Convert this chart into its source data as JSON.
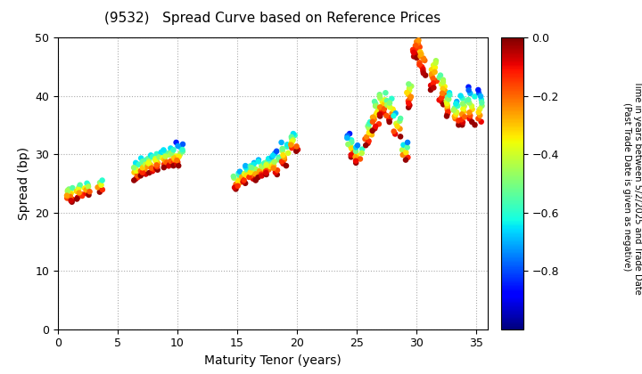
{
  "title": "(9532)   Spread Curve based on Reference Prices",
  "xlabel": "Maturity Tenor (years)",
  "ylabel": "Spread (bp)",
  "colorbar_label_line1": "Time in years between 5/2/2025 and Trade Date",
  "colorbar_label_line2": "(Past Trade Date is given as negative)",
  "xlim": [
    0,
    36
  ],
  "ylim": [
    0,
    50
  ],
  "xticks": [
    0,
    5,
    10,
    15,
    20,
    25,
    30,
    35
  ],
  "yticks": [
    0,
    10,
    20,
    30,
    40,
    50
  ],
  "cmap": "jet",
  "vmin": -1.0,
  "vmax": 0.0,
  "colorbar_ticks": [
    0.0,
    -0.2,
    -0.4,
    -0.6,
    -0.8
  ],
  "clusters": [
    {
      "x_center": 1.0,
      "y_center": 23.0,
      "x_spread": 0.25,
      "y_spread": 1.2,
      "n": 12,
      "color_range": [
        -0.02,
        -0.55
      ]
    },
    {
      "x_center": 1.8,
      "y_center": 23.5,
      "x_spread": 0.25,
      "y_spread": 1.2,
      "n": 10,
      "color_range": [
        -0.02,
        -0.55
      ]
    },
    {
      "x_center": 2.5,
      "y_center": 24.0,
      "x_spread": 0.25,
      "y_spread": 1.0,
      "n": 8,
      "color_range": [
        -0.02,
        -0.6
      ]
    },
    {
      "x_center": 3.5,
      "y_center": 24.5,
      "x_spread": 0.25,
      "y_spread": 1.0,
      "n": 6,
      "color_range": [
        -0.02,
        -0.6
      ]
    },
    {
      "x_center": 6.5,
      "y_center": 27.0,
      "x_spread": 0.3,
      "y_spread": 1.5,
      "n": 12,
      "color_range": [
        -0.02,
        -0.65
      ]
    },
    {
      "x_center": 7.2,
      "y_center": 27.8,
      "x_spread": 0.3,
      "y_spread": 1.5,
      "n": 12,
      "color_range": [
        -0.02,
        -0.65
      ]
    },
    {
      "x_center": 7.8,
      "y_center": 28.3,
      "x_spread": 0.3,
      "y_spread": 1.5,
      "n": 12,
      "color_range": [
        -0.02,
        -0.65
      ]
    },
    {
      "x_center": 8.4,
      "y_center": 28.8,
      "x_spread": 0.3,
      "y_spread": 1.5,
      "n": 12,
      "color_range": [
        -0.02,
        -0.65
      ]
    },
    {
      "x_center": 9.0,
      "y_center": 29.2,
      "x_spread": 0.3,
      "y_spread": 1.5,
      "n": 12,
      "color_range": [
        -0.02,
        -0.65
      ]
    },
    {
      "x_center": 9.6,
      "y_center": 29.5,
      "x_spread": 0.3,
      "y_spread": 1.5,
      "n": 12,
      "color_range": [
        -0.02,
        -0.65
      ]
    },
    {
      "x_center": 10.2,
      "y_center": 30.0,
      "x_spread": 0.3,
      "y_spread": 2.0,
      "n": 14,
      "color_range": [
        -0.02,
        -0.85
      ]
    },
    {
      "x_center": 15.0,
      "y_center": 25.5,
      "x_spread": 0.3,
      "y_spread": 1.5,
      "n": 12,
      "color_range": [
        -0.02,
        -0.7
      ]
    },
    {
      "x_center": 15.7,
      "y_center": 26.5,
      "x_spread": 0.3,
      "y_spread": 1.5,
      "n": 12,
      "color_range": [
        -0.02,
        -0.7
      ]
    },
    {
      "x_center": 16.3,
      "y_center": 27.0,
      "x_spread": 0.3,
      "y_spread": 1.5,
      "n": 12,
      "color_range": [
        -0.02,
        -0.7
      ]
    },
    {
      "x_center": 17.0,
      "y_center": 27.5,
      "x_spread": 0.3,
      "y_spread": 1.5,
      "n": 12,
      "color_range": [
        -0.02,
        -0.7
      ]
    },
    {
      "x_center": 17.7,
      "y_center": 28.0,
      "x_spread": 0.3,
      "y_spread": 1.5,
      "n": 12,
      "color_range": [
        -0.02,
        -0.7
      ]
    },
    {
      "x_center": 18.3,
      "y_center": 28.5,
      "x_spread": 0.3,
      "y_spread": 2.0,
      "n": 12,
      "color_range": [
        -0.02,
        -0.8
      ]
    },
    {
      "x_center": 19.0,
      "y_center": 30.0,
      "x_spread": 0.3,
      "y_spread": 2.0,
      "n": 12,
      "color_range": [
        -0.02,
        -0.7
      ]
    },
    {
      "x_center": 19.8,
      "y_center": 32.0,
      "x_spread": 0.3,
      "y_spread": 1.5,
      "n": 12,
      "color_range": [
        -0.02,
        -0.65
      ]
    },
    {
      "x_center": 24.5,
      "y_center": 31.5,
      "x_spread": 0.3,
      "y_spread": 2.0,
      "n": 12,
      "color_range": [
        -0.02,
        -0.85
      ]
    },
    {
      "x_center": 25.2,
      "y_center": 30.0,
      "x_spread": 0.3,
      "y_spread": 1.5,
      "n": 10,
      "color_range": [
        -0.02,
        -0.75
      ]
    },
    {
      "x_center": 26.0,
      "y_center": 33.5,
      "x_spread": 0.3,
      "y_spread": 2.0,
      "n": 12,
      "color_range": [
        -0.02,
        -0.6
      ]
    },
    {
      "x_center": 26.6,
      "y_center": 36.5,
      "x_spread": 0.3,
      "y_spread": 2.5,
      "n": 14,
      "color_range": [
        -0.02,
        -0.55
      ]
    },
    {
      "x_center": 27.2,
      "y_center": 38.5,
      "x_spread": 0.3,
      "y_spread": 2.0,
      "n": 14,
      "color_range": [
        -0.02,
        -0.55
      ]
    },
    {
      "x_center": 27.8,
      "y_center": 37.5,
      "x_spread": 0.3,
      "y_spread": 2.0,
      "n": 12,
      "color_range": [
        -0.02,
        -0.6
      ]
    },
    {
      "x_center": 28.4,
      "y_center": 35.0,
      "x_spread": 0.3,
      "y_spread": 2.0,
      "n": 10,
      "color_range": [
        -0.02,
        -0.7
      ]
    },
    {
      "x_center": 29.0,
      "y_center": 30.5,
      "x_spread": 0.3,
      "y_spread": 1.5,
      "n": 8,
      "color_range": [
        -0.02,
        -0.75
      ]
    },
    {
      "x_center": 29.5,
      "y_center": 40.0,
      "x_spread": 0.3,
      "y_spread": 2.0,
      "n": 12,
      "color_range": [
        -0.02,
        -0.5
      ]
    },
    {
      "x_center": 30.0,
      "y_center": 48.0,
      "x_spread": 0.3,
      "y_spread": 1.5,
      "n": 14,
      "color_range": [
        -0.02,
        -0.25
      ]
    },
    {
      "x_center": 30.5,
      "y_center": 45.5,
      "x_spread": 0.3,
      "y_spread": 2.0,
      "n": 12,
      "color_range": [
        -0.02,
        -0.3
      ]
    },
    {
      "x_center": 31.5,
      "y_center": 43.5,
      "x_spread": 0.3,
      "y_spread": 2.5,
      "n": 14,
      "color_range": [
        -0.02,
        -0.45
      ]
    },
    {
      "x_center": 32.2,
      "y_center": 41.0,
      "x_spread": 0.3,
      "y_spread": 2.5,
      "n": 14,
      "color_range": [
        -0.02,
        -0.55
      ]
    },
    {
      "x_center": 32.8,
      "y_center": 38.5,
      "x_spread": 0.3,
      "y_spread": 2.0,
      "n": 12,
      "color_range": [
        -0.02,
        -0.65
      ]
    },
    {
      "x_center": 33.4,
      "y_center": 37.0,
      "x_spread": 0.3,
      "y_spread": 2.0,
      "n": 12,
      "color_range": [
        -0.02,
        -0.7
      ]
    },
    {
      "x_center": 34.0,
      "y_center": 37.5,
      "x_spread": 0.3,
      "y_spread": 2.5,
      "n": 12,
      "color_range": [
        -0.02,
        -0.65
      ]
    },
    {
      "x_center": 34.6,
      "y_center": 38.5,
      "x_spread": 0.3,
      "y_spread": 3.0,
      "n": 12,
      "color_range": [
        -0.02,
        -0.85
      ]
    },
    {
      "x_center": 35.2,
      "y_center": 38.0,
      "x_spread": 0.3,
      "y_spread": 3.0,
      "n": 12,
      "color_range": [
        -0.02,
        -0.85
      ]
    }
  ],
  "marker_size": 22,
  "background_color": "#ffffff",
  "grid_color": "#aaaaaa",
  "grid_style": ":"
}
